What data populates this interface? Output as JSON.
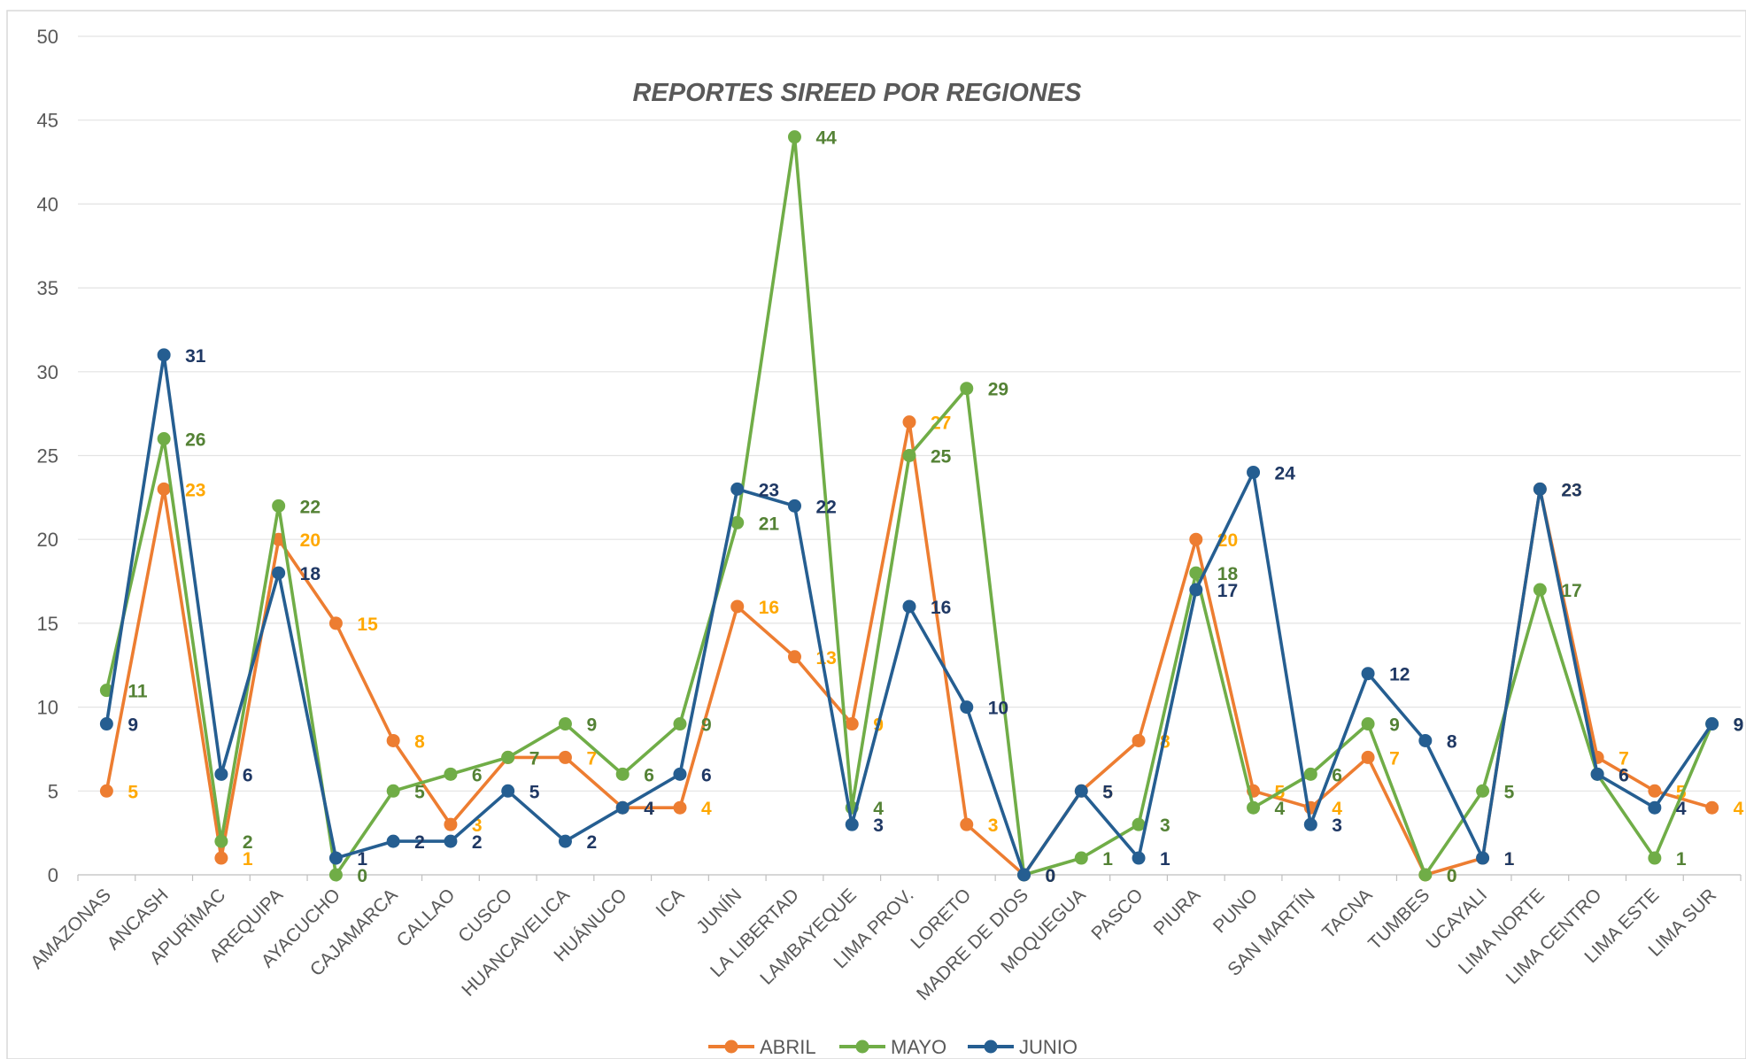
{
  "chart_data": {
    "type": "line",
    "title": "REPORTES SIREED POR REGIONES",
    "xlabel": "",
    "ylabel": "",
    "ylim": [
      0,
      50
    ],
    "yticks": [
      0,
      5,
      10,
      15,
      20,
      25,
      30,
      35,
      40,
      45,
      50
    ],
    "grid": true,
    "legend_position": "bottom",
    "categories": [
      "AMAZONAS",
      "ANCASH",
      "APURÍMAC",
      "AREQUIPA",
      "AYACUCHO",
      "CAJAMARCA",
      "CALLAO",
      "CUSCO",
      "HUANCAVELICA",
      "HUÁNUCO",
      "ICA",
      "JUNÍN",
      "LA LIBERTAD",
      "LAMBAYEQUE",
      "LIMA PROV.",
      "LORETO",
      "MADRE DE DIOS",
      "MOQUEGUA",
      "PASCO",
      "PIURA",
      "PUNO",
      "SAN MARTÍN",
      "TACNA",
      "TUMBES",
      "UCAYALI",
      "LIMA NORTE",
      "LIMA CENTRO",
      "LIMA ESTE",
      "LIMA SUR"
    ],
    "series": [
      {
        "name": "ABRIL",
        "color": "#ED7D31",
        "label_color": "#FFA800",
        "values": [
          5,
          23,
          1,
          20,
          15,
          8,
          3,
          7,
          7,
          4,
          4,
          16,
          13,
          9,
          27,
          3,
          0,
          5,
          8,
          20,
          5,
          4,
          7,
          0,
          1,
          23,
          7,
          5,
          4
        ]
      },
      {
        "name": "MAYO",
        "color": "#70AD47",
        "label_color": "#548235",
        "values": [
          11,
          26,
          2,
          22,
          0,
          5,
          6,
          7,
          9,
          6,
          9,
          21,
          44,
          4,
          25,
          29,
          0,
          1,
          3,
          18,
          4,
          6,
          9,
          0,
          5,
          17,
          6,
          1,
          9
        ]
      },
      {
        "name": "JUNIO",
        "color": "#255E91",
        "label_color": "#1F3864",
        "values": [
          9,
          31,
          6,
          18,
          1,
          2,
          2,
          5,
          2,
          4,
          6,
          23,
          22,
          3,
          16,
          10,
          0,
          5,
          1,
          17,
          24,
          3,
          12,
          8,
          1,
          23,
          6,
          4,
          9
        ]
      }
    ]
  }
}
